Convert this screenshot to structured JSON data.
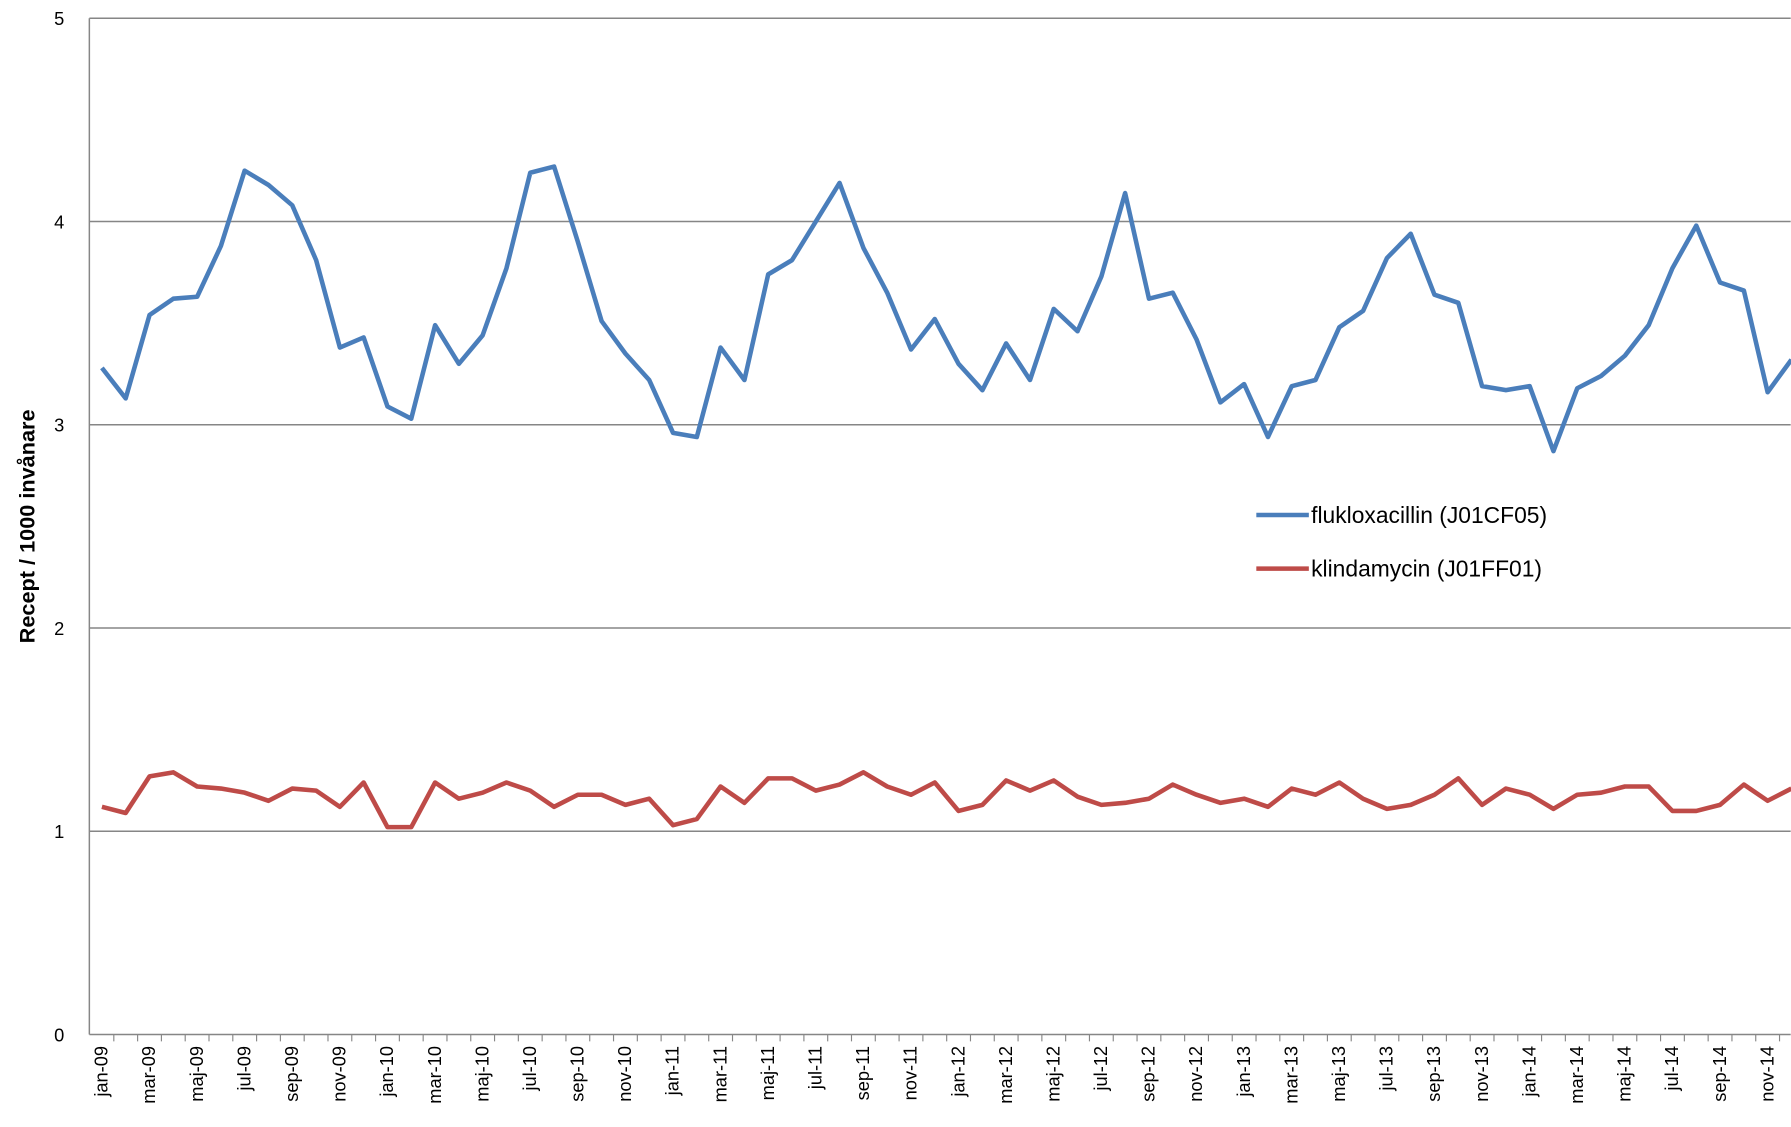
{
  "chart_data": {
    "type": "line",
    "y_label": "Recept / 1000 invånare",
    "categories": [
      "jan-09",
      null,
      "mar-09",
      null,
      "maj-09",
      null,
      "jul-09",
      null,
      "sep-09",
      null,
      "nov-09",
      null,
      "jan-10",
      null,
      "mar-10",
      null,
      "maj-10",
      null,
      "jul-10",
      null,
      "sep-10",
      null,
      "nov-10",
      null,
      "jan-11",
      null,
      "mar-11",
      null,
      "maj-11",
      null,
      "jul-11",
      null,
      "sep-11",
      null,
      "nov-11",
      null,
      "jan-12",
      null,
      "mar-12",
      null,
      "maj-12",
      null,
      "jul-12",
      null,
      "sep-12",
      null,
      "nov-12",
      null,
      "jan-13",
      null,
      "mar-13",
      null,
      "maj-13",
      null,
      "jul-13",
      null,
      "sep-13",
      null,
      "nov-13",
      null,
      "jan-14",
      null,
      "mar-14",
      null,
      "maj-14",
      null,
      "jul-14",
      null,
      "sep-14",
      null,
      "nov-14",
      null
    ],
    "series": [
      {
        "name": "flukloxacillin (J01CF05)",
        "color": "#4a7ebb",
        "values": [
          3.28,
          3.13,
          3.54,
          3.62,
          3.63,
          3.88,
          4.25,
          4.18,
          4.08,
          3.81,
          3.38,
          3.43,
          3.09,
          3.03,
          3.49,
          3.3,
          3.44,
          3.77,
          4.24,
          4.27,
          3.9,
          3.51,
          3.35,
          3.22,
          2.96,
          2.94,
          3.38,
          3.22,
          3.74,
          3.81,
          4.0,
          4.19,
          3.87,
          3.65,
          3.37,
          3.52,
          3.3,
          3.17,
          3.4,
          3.22,
          3.57,
          3.46,
          3.73,
          4.14,
          3.62,
          3.65,
          3.42,
          3.11,
          3.2,
          2.94,
          3.19,
          3.22,
          3.48,
          3.56,
          3.82,
          3.94,
          3.64,
          3.6,
          3.19,
          3.17,
          3.19,
          2.87,
          3.18,
          3.24,
          3.34,
          3.49,
          3.77,
          3.98,
          3.7,
          3.66,
          3.16,
          3.32
        ]
      },
      {
        "name": "klindamycin (J01FF01)",
        "color": "#be4b48",
        "values": [
          1.12,
          1.09,
          1.27,
          1.29,
          1.22,
          1.21,
          1.19,
          1.15,
          1.21,
          1.2,
          1.12,
          1.24,
          1.02,
          1.02,
          1.24,
          1.16,
          1.19,
          1.24,
          1.2,
          1.12,
          1.18,
          1.18,
          1.13,
          1.16,
          1.03,
          1.06,
          1.22,
          1.14,
          1.26,
          1.26,
          1.2,
          1.23,
          1.29,
          1.22,
          1.18,
          1.24,
          1.1,
          1.13,
          1.25,
          1.2,
          1.25,
          1.17,
          1.13,
          1.14,
          1.16,
          1.23,
          1.18,
          1.14,
          1.16,
          1.12,
          1.21,
          1.18,
          1.24,
          1.16,
          1.11,
          1.13,
          1.18,
          1.26,
          1.13,
          1.21,
          1.18,
          1.11,
          1.18,
          1.19,
          1.22,
          1.22,
          1.1,
          1.1,
          1.13,
          1.23,
          1.15,
          1.21
        ]
      }
    ],
    "ylim": [
      0,
      5
    ],
    "yticks": [
      0,
      1,
      2,
      3,
      4,
      5
    ],
    "grid": true,
    "legend": "right"
  }
}
